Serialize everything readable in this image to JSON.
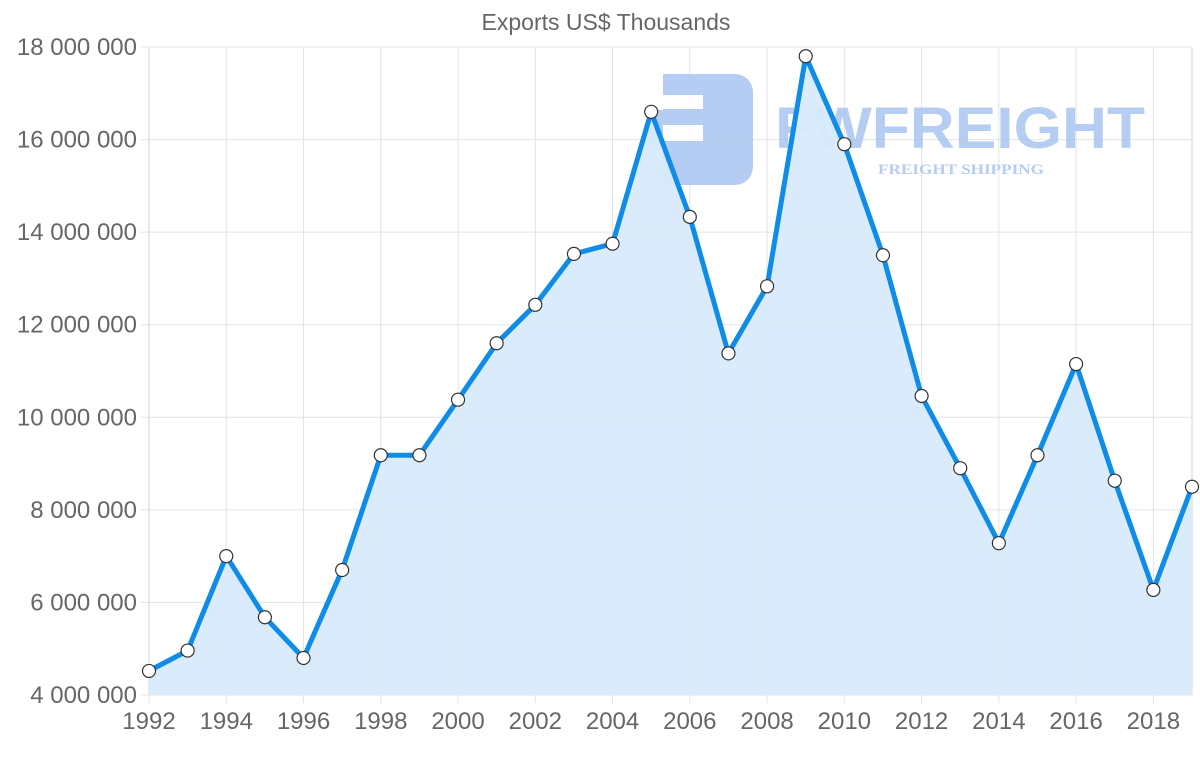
{
  "chart_data": {
    "type": "line",
    "title": "Exports US$ Thousands",
    "xlabel": "",
    "ylabel": "",
    "ylim": [
      4000000,
      18000000
    ],
    "grid": true,
    "legend": null,
    "fill": true,
    "y_ticks": [
      "4 000 000",
      "6 000 000",
      "8 000 000",
      "10 000 000",
      "12 000 000",
      "14 000 000",
      "16 000 000",
      "18 000 000"
    ],
    "x_ticks": [
      "1992",
      "1994",
      "1996",
      "1998",
      "2000",
      "2002",
      "2004",
      "2006",
      "2008",
      "2010",
      "2012",
      "2014",
      "2016",
      "2018"
    ],
    "x": [
      1992,
      1993,
      1994,
      1995,
      1996,
      1997,
      1998,
      1999,
      2000,
      2001,
      2002,
      2003,
      2004,
      2005,
      2006,
      2007,
      2008,
      2009,
      2010,
      2011,
      2012,
      2013,
      2014,
      2015,
      2016,
      2017,
      2018,
      2019
    ],
    "series": [
      {
        "name": "Exports US$ Thousands",
        "values": [
          4520000,
          4960000,
          7000000,
          5680000,
          4800000,
          6700000,
          9180000,
          9180000,
          10380000,
          11600000,
          12430000,
          13530000,
          13750000,
          16600000,
          14330000,
          11380000,
          12830000,
          17800000,
          15900000,
          13500000,
          10460000,
          8900000,
          7280000,
          9180000,
          11150000,
          8630000,
          6270000,
          8500000
        ]
      }
    ]
  },
  "colors": {
    "line": "#0f8be8",
    "fill": "#d8ebfb",
    "point_fill": "#ffffff",
    "point_stroke": "#333333",
    "text": "#666666",
    "grid": "#e3e3e3",
    "watermark": "#a9c5f0"
  },
  "watermark": {
    "brand": "FWFREIGHT",
    "tagline": "FREIGHT SHIPPING"
  }
}
